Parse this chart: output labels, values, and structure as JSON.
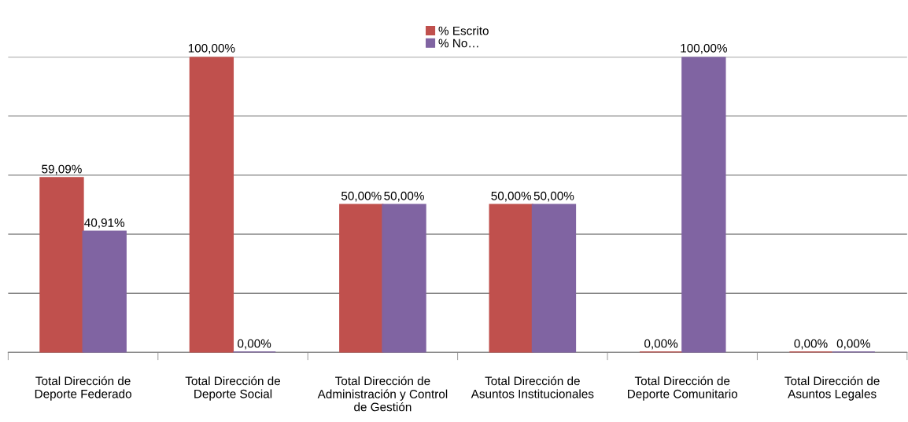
{
  "chart_data": {
    "type": "bar",
    "categories": [
      "Total Dirección de Deporte Federado",
      "Total Dirección de Deporte Social",
      "Total Dirección de Administración y Control de Gestión",
      "Total Dirección de Asuntos Institucionales",
      "Total Dirección de Deporte Comunitario",
      "Total Dirección de Asuntos Legales"
    ],
    "series": [
      {
        "name": "% Escrito",
        "color": "#c0504d",
        "values": [
          59.09,
          100,
          50,
          50,
          0,
          0
        ],
        "value_labels": [
          "59,09%",
          "100,00%",
          "50,00%",
          "50,00%",
          "0,00%",
          "0,00%"
        ]
      },
      {
        "name": "% No…",
        "color": "#8064a2",
        "values": [
          40.91,
          0,
          50,
          50,
          100,
          0
        ],
        "value_labels": [
          "40,91%",
          "0,00%",
          "50,00%",
          "50,00%",
          "100,00%",
          "0,00%"
        ]
      }
    ],
    "ylim": [
      0,
      100
    ],
    "yticks": [
      {
        "value": 0,
        "label": null
      },
      {
        "value": 20,
        "label": null
      },
      {
        "value": 40,
        "label": null
      },
      {
        "value": 60,
        "label": null
      },
      {
        "value": 80,
        "label": null
      },
      {
        "value": 100,
        "label": null
      }
    ],
    "grid": "y",
    "legend": "top",
    "tick_labels": "x"
  }
}
